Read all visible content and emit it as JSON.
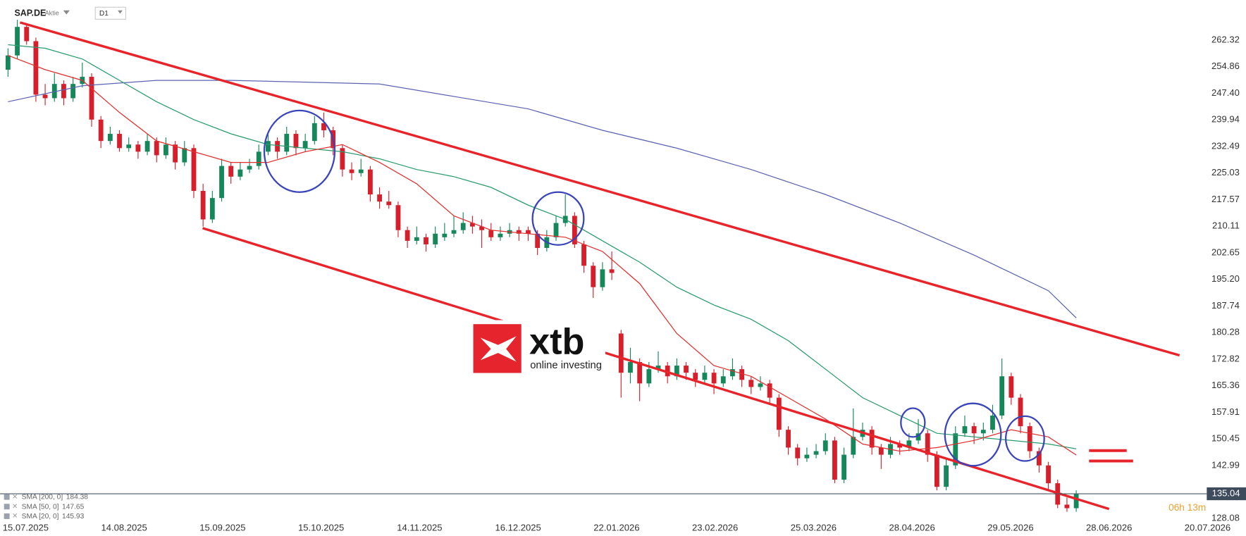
{
  "chart_data": {
    "type": "candlestick",
    "symbol": "SAP.DE",
    "instrument_type": "Aktie",
    "timeframe": "D1",
    "up_color": "#15875a",
    "down_color": "#d61f2a",
    "x_labels": [
      "15.07.2025",
      "14.08.2025",
      "15.09.2025",
      "15.10.2025",
      "14.11.2025",
      "16.12.2025",
      "22.01.2026",
      "23.02.2026",
      "25.03.2026",
      "28.04.2026",
      "29.05.2026",
      "28.06.2026",
      "20.07.2026"
    ],
    "ylim": [
      127.18,
      273.54
    ],
    "yticks": [
      262.32,
      254.86,
      {
        "value": 247.4,
        "label": "247.40"
      },
      239.94,
      232.49,
      225.03,
      217.57,
      210.11,
      202.65,
      {
        "value": 195.2,
        "label": "195.20"
      },
      187.74,
      180.28,
      172.82,
      165.36,
      157.91,
      150.45,
      142.99,
      128.08
    ],
    "candles": [
      [
        254,
        260,
        252,
        258
      ],
      [
        258,
        268,
        257,
        266
      ],
      [
        266,
        267,
        261,
        262
      ],
      [
        262,
        263,
        245,
        247
      ],
      [
        247,
        250,
        244,
        246
      ],
      [
        246,
        253,
        245,
        250
      ],
      [
        250,
        251,
        244,
        246
      ],
      [
        246,
        252,
        245,
        250
      ],
      [
        250,
        256,
        249,
        252
      ],
      [
        252,
        253,
        238,
        240
      ],
      [
        240,
        241,
        232,
        234
      ],
      [
        234,
        238,
        233,
        236
      ],
      [
        236,
        237,
        231,
        232
      ],
      [
        232,
        235,
        231,
        233
      ],
      [
        233,
        234,
        229,
        231
      ],
      [
        231,
        236,
        230,
        234
      ],
      [
        234,
        235,
        228,
        230
      ],
      [
        230,
        235,
        229,
        233
      ],
      [
        233,
        234,
        226,
        228
      ],
      [
        228,
        234,
        227,
        232
      ],
      [
        232,
        233,
        218,
        220
      ],
      [
        220,
        222,
        210,
        212
      ],
      [
        212,
        220,
        211,
        218
      ],
      [
        218,
        229,
        217,
        227
      ],
      [
        227,
        228,
        222,
        224
      ],
      [
        224,
        228,
        223,
        226
      ],
      [
        226,
        229,
        225,
        227
      ],
      [
        227,
        233,
        226,
        231
      ],
      [
        231,
        236,
        230,
        234
      ],
      [
        234,
        235,
        229,
        231
      ],
      [
        231,
        238,
        230,
        236
      ],
      [
        236,
        237,
        230,
        232
      ],
      [
        232,
        236,
        231,
        234
      ],
      [
        234,
        241,
        233,
        239
      ],
      [
        239,
        242,
        235,
        237
      ],
      [
        237,
        238,
        230,
        232
      ],
      [
        232,
        233,
        224,
        226
      ],
      [
        226,
        228,
        223,
        225
      ],
      [
        225,
        229,
        224,
        226
      ],
      [
        226,
        227,
        217,
        219
      ],
      [
        219,
        221,
        215,
        217
      ],
      [
        217,
        220,
        215,
        216
      ],
      [
        216,
        217,
        207,
        209
      ],
      [
        209,
        210,
        204,
        206
      ],
      [
        206,
        210,
        205,
        207
      ],
      [
        207,
        208,
        203,
        205
      ],
      [
        205,
        210,
        204,
        208
      ],
      [
        207,
        211,
        206,
        208
      ],
      [
        208,
        213,
        207,
        209
      ],
      [
        209,
        214,
        208,
        211
      ],
      [
        211,
        213,
        208,
        210
      ],
      [
        210,
        212,
        204,
        209
      ],
      [
        209,
        211,
        206,
        207
      ],
      [
        207,
        210,
        206,
        208
      ],
      [
        208,
        211,
        207,
        209
      ],
      [
        209,
        210,
        206,
        208
      ],
      [
        209,
        210,
        206,
        208
      ],
      [
        208,
        209,
        202,
        204
      ],
      [
        204,
        209,
        203,
        207
      ],
      [
        207,
        213,
        206,
        211
      ],
      [
        211,
        219,
        210,
        213
      ],
      [
        213,
        214,
        204,
        205
      ],
      [
        205,
        206,
        197,
        199
      ],
      [
        199,
        200,
        190,
        193
      ],
      [
        193,
        200,
        192,
        198
      ],
      [
        198,
        203,
        195,
        197
      ],
      [
        180,
        181,
        162,
        169
      ],
      [
        169,
        176,
        166,
        172
      ],
      [
        172,
        173,
        161,
        166
      ],
      [
        166,
        172,
        165,
        170
      ],
      [
        170,
        175,
        169,
        171
      ],
      [
        171,
        172,
        166,
        168
      ],
      [
        168,
        173,
        167,
        171
      ],
      [
        171,
        172,
        167,
        169
      ],
      [
        169,
        170,
        165,
        167
      ],
      [
        167,
        171,
        166,
        169
      ],
      [
        169,
        170,
        163,
        166
      ],
      [
        166,
        170,
        165,
        168
      ],
      [
        168,
        173,
        167,
        170
      ],
      [
        170,
        171,
        165,
        167
      ],
      [
        167,
        168,
        163,
        165
      ],
      [
        165,
        168,
        164,
        166
      ],
      [
        166,
        167,
        160,
        162
      ],
      [
        162,
        163,
        151,
        153
      ],
      [
        153,
        154,
        146,
        148
      ],
      [
        148,
        149,
        143,
        145
      ],
      [
        145,
        148,
        144,
        146
      ],
      [
        146,
        149,
        145,
        147
      ],
      [
        147,
        152,
        146,
        150
      ],
      [
        150,
        151,
        138,
        139
      ],
      [
        139,
        148,
        138,
        146
      ],
      [
        146,
        159,
        145,
        151
      ],
      [
        151,
        155,
        150,
        153
      ],
      [
        153,
        154,
        146,
        148
      ],
      [
        148,
        149,
        142,
        146
      ],
      [
        146,
        151,
        145,
        149
      ],
      [
        149,
        150,
        146,
        148
      ],
      [
        148,
        152,
        147,
        150
      ],
      [
        150,
        156,
        149,
        152
      ],
      [
        152,
        153,
        144,
        146
      ],
      [
        146,
        147,
        136,
        137
      ],
      [
        137,
        145,
        136,
        143
      ],
      [
        143,
        154,
        142,
        152
      ],
      [
        152,
        157,
        151,
        154
      ],
      [
        154,
        155,
        149,
        152
      ],
      [
        152,
        155,
        150,
        153
      ],
      [
        153,
        160,
        152,
        157
      ],
      [
        157,
        173,
        156,
        168
      ],
      [
        168,
        169,
        160,
        162
      ],
      [
        162,
        163,
        152,
        154
      ],
      [
        154,
        155,
        145,
        147
      ],
      [
        147,
        148,
        141,
        143
      ],
      [
        143,
        144,
        136,
        138
      ],
      [
        138,
        139,
        131,
        132
      ],
      [
        132,
        134,
        130,
        131
      ],
      [
        131,
        136,
        130,
        135.04
      ]
    ],
    "indicators": [
      {
        "name": "SMA [200, 0]",
        "value": 184.38,
        "color": "#5a63b3",
        "x": [
          0,
          8,
          16,
          24,
          32,
          40,
          48,
          56,
          64,
          72,
          80,
          88,
          96,
          104,
          112,
          115
        ],
        "values": [
          245,
          249.5,
          251,
          251,
          250.5,
          250,
          246.5,
          243,
          237,
          232,
          226,
          219,
          211,
          202,
          192,
          184.38
        ]
      },
      {
        "name": "SMA [50, 0]",
        "value": 147.65,
        "color": "#2a9b6b",
        "x": [
          0,
          4,
          8,
          12,
          16,
          20,
          24,
          28,
          32,
          36,
          40,
          44,
          48,
          52,
          56,
          60,
          64,
          68,
          72,
          76,
          80,
          84,
          88,
          92,
          96,
          100,
          104,
          108,
          112,
          115
        ],
        "values": [
          261,
          260,
          257,
          251,
          245,
          240,
          236,
          233,
          232,
          231,
          229,
          226,
          224,
          221,
          216,
          212,
          206,
          200,
          193,
          188,
          184,
          178,
          170,
          162,
          157,
          152,
          151,
          150,
          149,
          147.65
        ]
      },
      {
        "name": "SMA [20, 0]",
        "value": 145.93,
        "color": "#e2302f",
        "x": [
          0,
          4,
          8,
          12,
          16,
          20,
          24,
          28,
          32,
          36,
          40,
          44,
          48,
          52,
          56,
          60,
          64,
          68,
          72,
          76,
          80,
          84,
          88,
          92,
          96,
          100,
          104,
          108,
          112,
          115
        ],
        "values": [
          258,
          254,
          251,
          242,
          234,
          231,
          228,
          228,
          231,
          233,
          228,
          222,
          213,
          209,
          208,
          207,
          203,
          194,
          180,
          171,
          168,
          162,
          156,
          149,
          147,
          148,
          150,
          153,
          151,
          145.93
        ]
      }
    ],
    "last_price": 135.04,
    "countdown": "06h 13m"
  },
  "watermark": {
    "brand": "xtb",
    "tagline": "online investing"
  }
}
